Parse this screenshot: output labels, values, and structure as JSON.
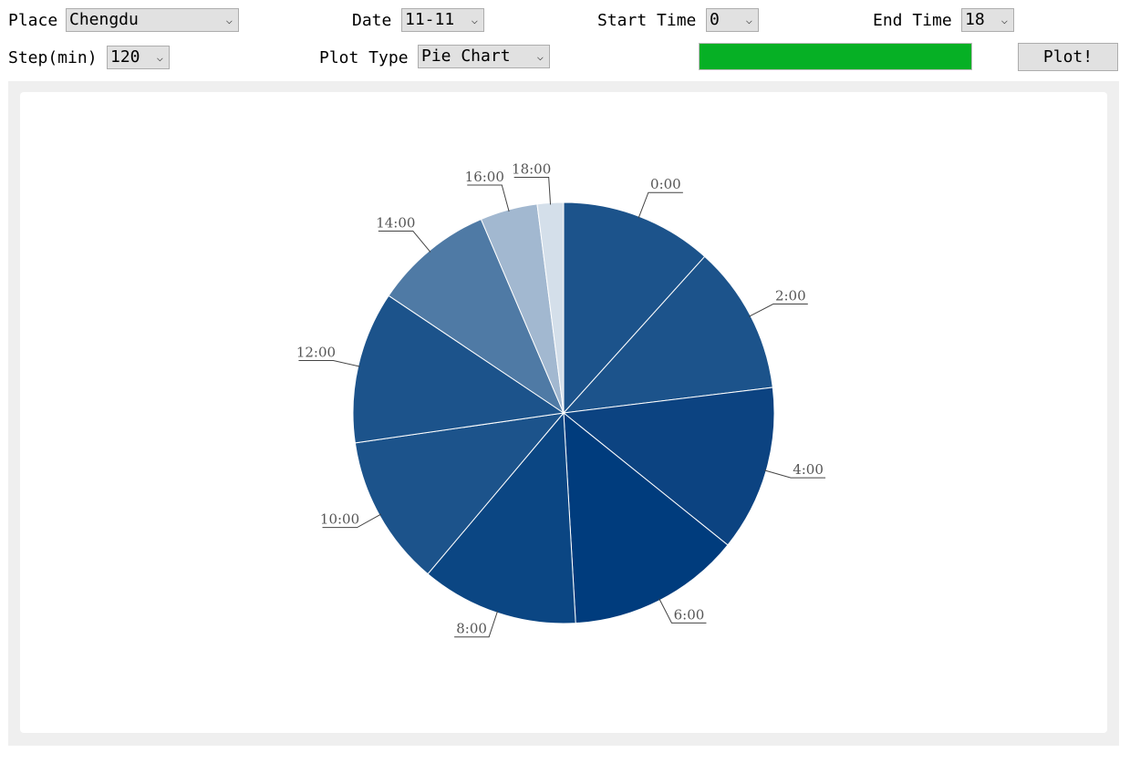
{
  "controls": {
    "place": {
      "label": "Place",
      "value": "Chengdu"
    },
    "date": {
      "label": "Date",
      "value": "11-11"
    },
    "start_time": {
      "label": "Start Time",
      "value": "0"
    },
    "end_time": {
      "label": "End Time",
      "value": "18"
    },
    "step": {
      "label": "Step(min)",
      "value": "120"
    },
    "plot_type": {
      "label": "Plot Type",
      "value": "Pie Chart"
    },
    "progress": 1.0,
    "plot_button": "Plot!"
  },
  "icons": {
    "dropdown": "chevron-down-icon"
  },
  "colors": {
    "progress": "#06b025"
  },
  "chart_data": {
    "type": "pie",
    "categories": [
      "0:00",
      "2:00",
      "4:00",
      "6:00",
      "8:00",
      "10:00",
      "12:00",
      "14:00",
      "16:00",
      "18:00"
    ],
    "values": [
      12.2,
      11.9,
      13.3,
      13.9,
      12.6,
      12.1,
      12.2,
      9.6,
      4.6,
      2.1
    ],
    "colors": [
      "#1c538b",
      "#1c538b",
      "#0c4381",
      "#003c7d",
      "#0b4683",
      "#1c538b",
      "#1c538b",
      "#4f7aa5",
      "#a2b8d0",
      "#d4dfea"
    ],
    "start_angle_deg": 0,
    "direction": "clockwise",
    "legend": "none"
  }
}
